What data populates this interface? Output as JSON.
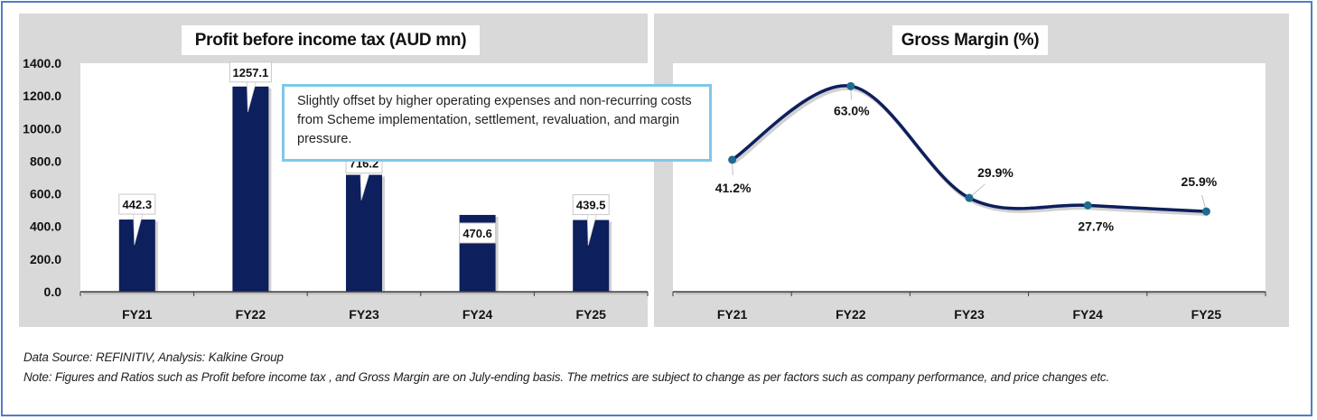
{
  "chart_data": [
    {
      "type": "bar",
      "title": "Profit before income tax (AUD mn)",
      "categories": [
        "FY21",
        "FY22",
        "FY23",
        "FY24",
        "FY25"
      ],
      "values": [
        442.3,
        1257.1,
        716.2,
        470.6,
        439.5
      ],
      "data_labels": [
        "442.3",
        "1257.1",
        "716.2",
        "470.6",
        "439.5"
      ],
      "xlabel": "",
      "ylabel": "",
      "ylim": [
        0,
        1400
      ],
      "yticks": [
        0,
        200,
        400,
        600,
        800,
        1000,
        1200,
        1400
      ],
      "ytick_labels": [
        "0.0",
        "200.0",
        "400.0",
        "600.0",
        "800.0",
        "1000.0",
        "1200.0",
        "1400.0"
      ],
      "grid": false,
      "legend": "none",
      "bar_color": "#0d1f5c",
      "annotation": "Slightly offset by higher operating expenses and non-recurring costs from Scheme implementation, settlement, revaluation, and margin pressure."
    },
    {
      "type": "line",
      "title": "Gross Margin (%)",
      "categories": [
        "FY21",
        "FY22",
        "FY23",
        "FY24",
        "FY25"
      ],
      "values": [
        41.2,
        63.0,
        29.9,
        27.7,
        25.9
      ],
      "data_labels": [
        "41.2%",
        "63.0%",
        "29.9%",
        "27.7%",
        "25.9%"
      ],
      "xlabel": "",
      "ylabel": "",
      "ylim": [
        0,
        70
      ],
      "smooth": true,
      "grid": false,
      "legend": "none",
      "line_color": "#0d1f5c",
      "marker_color": "#1f6b8f"
    }
  ],
  "footer": {
    "source": "Data Source: REFINITIV, Analysis: Kalkine Group",
    "note": "Note: Figures and Ratios such as Profit before income tax , and Gross Margin are on  July-ending basis. The metrics are subject to change as per factors such as company performance, and price changes etc."
  }
}
